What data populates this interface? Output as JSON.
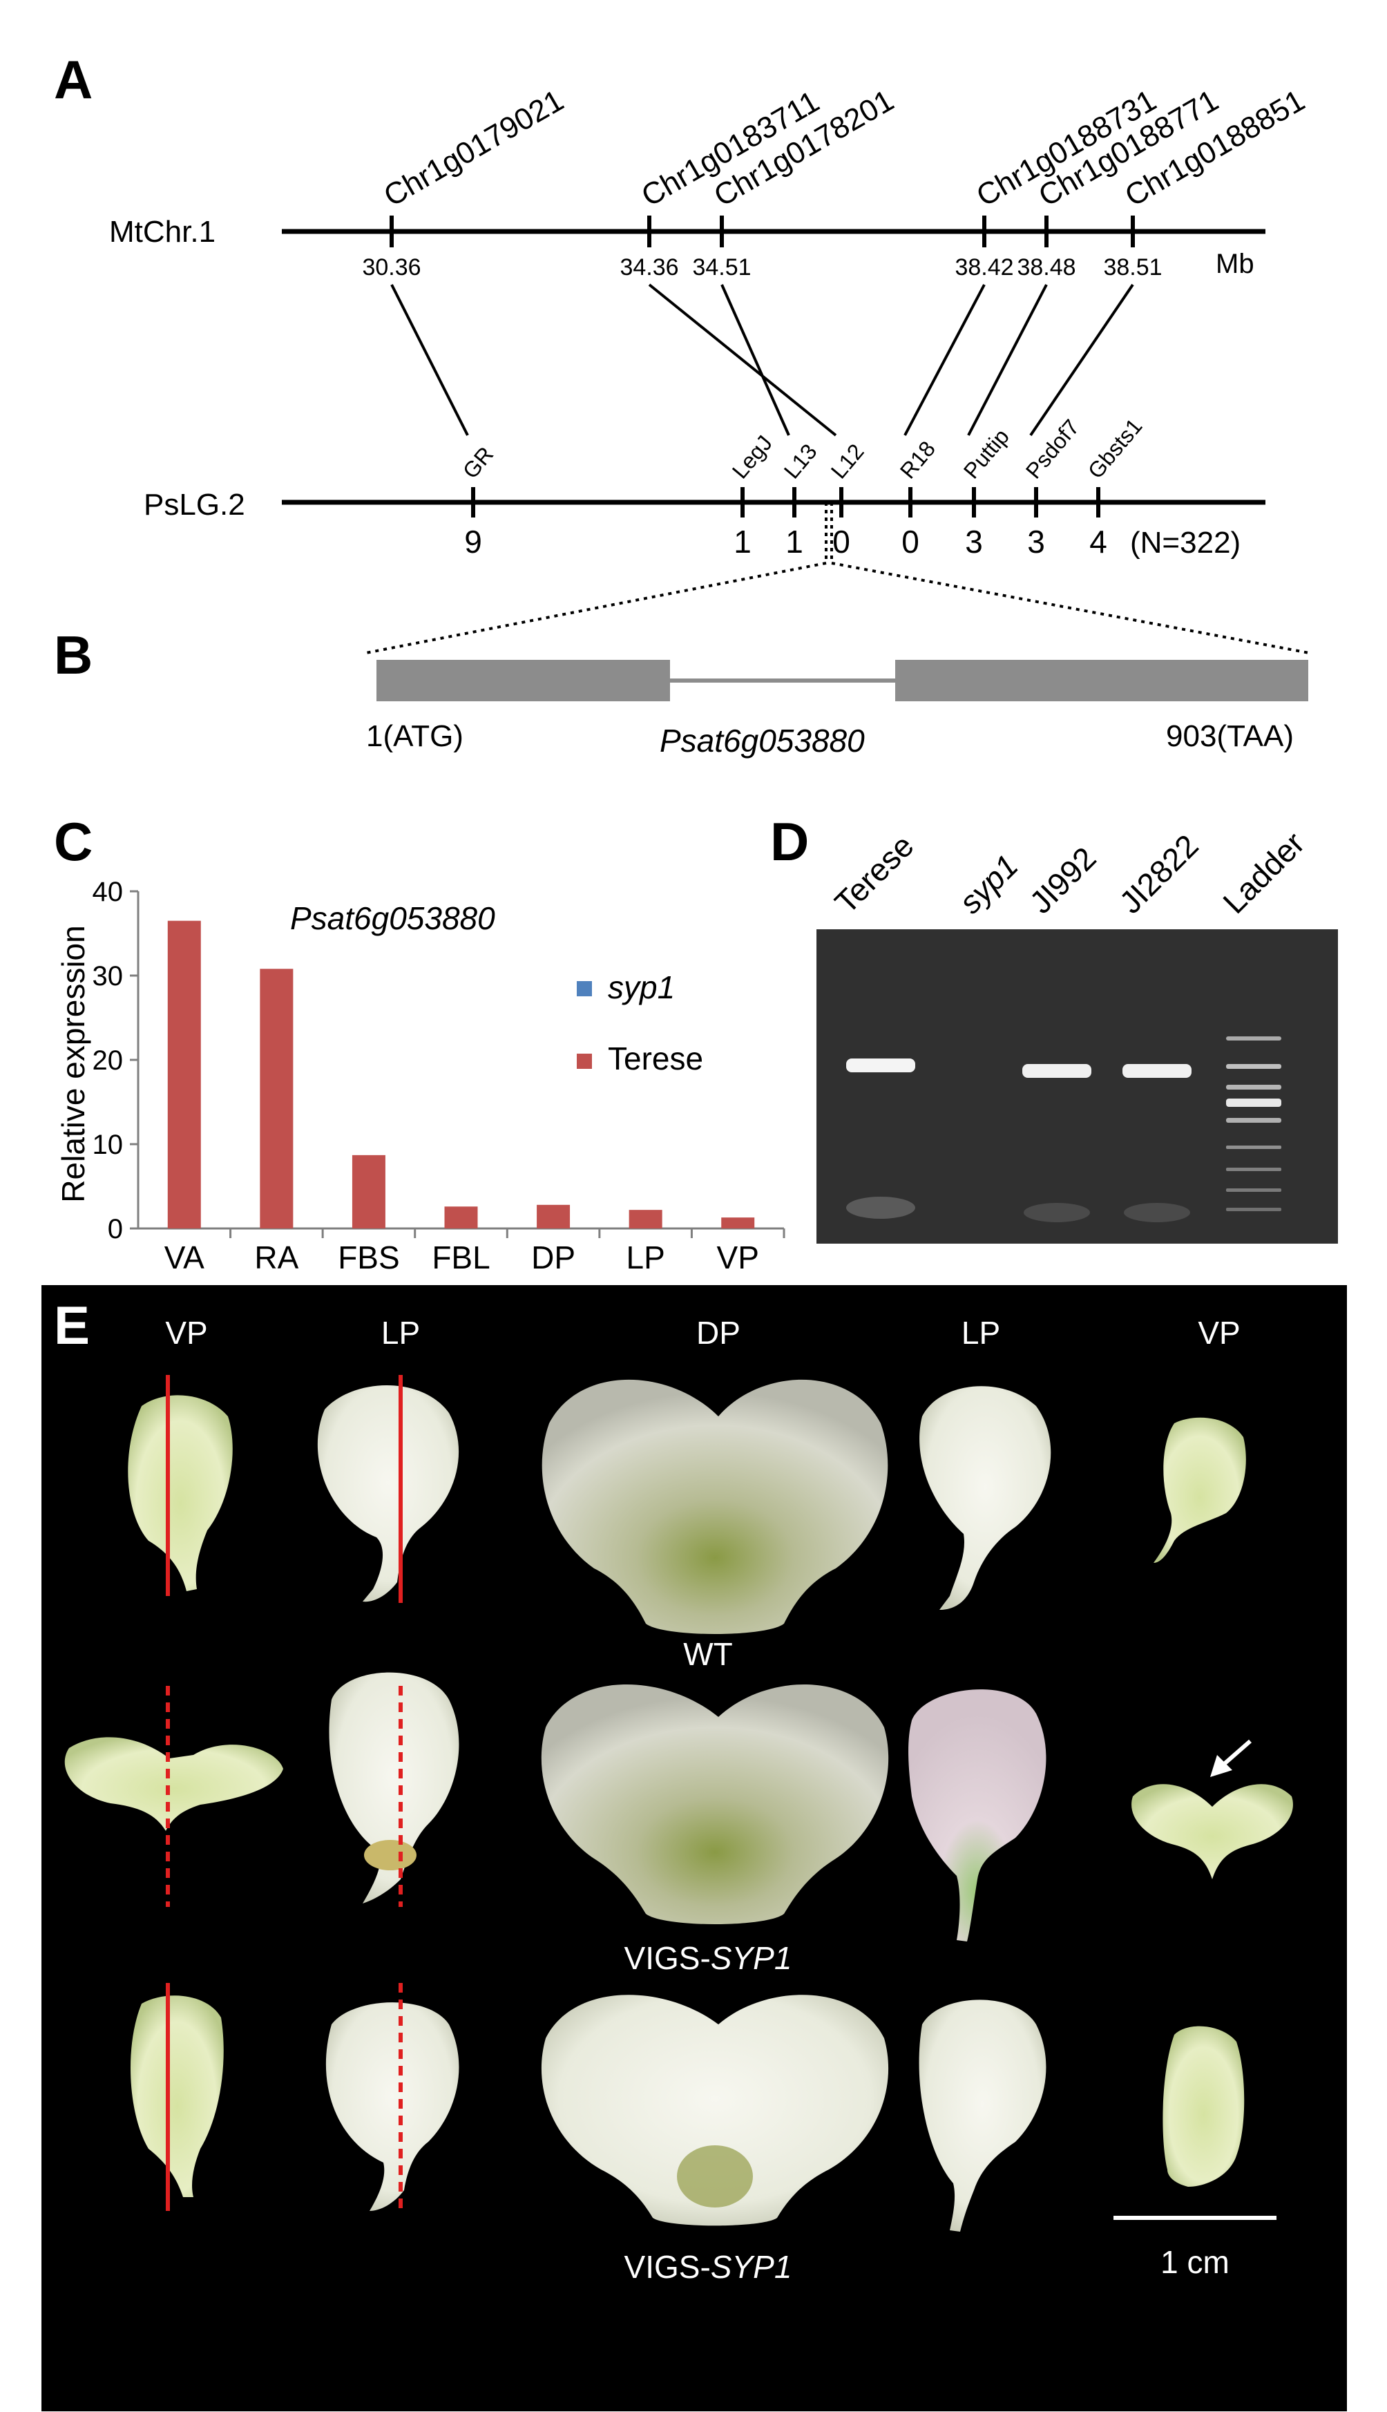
{
  "panel_a": {
    "label": "A",
    "mt_chr_label": "MtChr.1",
    "mt_unit": "Mb",
    "mt_genes": [
      {
        "name": "Chr1g0179021",
        "pos": "30.36"
      },
      {
        "name": "Chr1g0183711",
        "pos": "34.36"
      },
      {
        "name": "Chr1g0178201",
        "pos": "34.51"
      },
      {
        "name": "Chr1g0188731",
        "pos": "38.42"
      },
      {
        "name": "Chr1g0188771",
        "pos": "38.48"
      },
      {
        "name": "Chr1g0188851",
        "pos": "38.51"
      }
    ],
    "ps_lg_label": "PsLG.2",
    "ps_n": "(N=322)",
    "ps_markers": [
      {
        "name": "GR",
        "rec": "9"
      },
      {
        "name": "LegJ",
        "rec": "1"
      },
      {
        "name": "L13",
        "rec": "1"
      },
      {
        "name": "L12",
        "rec": "0"
      },
      {
        "name": "R18",
        "rec": "0"
      },
      {
        "name": "Puttip",
        "rec": "3"
      },
      {
        "name": "Psdof7",
        "rec": "3"
      },
      {
        "name": "Gbsts1",
        "rec": "4"
      }
    ]
  },
  "panel_b": {
    "label": "B",
    "start": "1(ATG)",
    "gene": "Psat6g053880",
    "end": "903(TAA)"
  },
  "panel_c": {
    "label": "C",
    "chart_data": {
      "type": "bar",
      "title": "Psat6g053880",
      "ylabel": "Relative expression",
      "xlabel": "",
      "ylim": [
        0,
        40
      ],
      "yticks": [
        "0",
        "10",
        "20",
        "30",
        "40"
      ],
      "categories": [
        "VA",
        "RA",
        "FBS",
        "FBL",
        "DP",
        "LP",
        "VP"
      ],
      "series": [
        {
          "name": "syp1",
          "color": "#4f81bd",
          "values": [
            0,
            0,
            0,
            0,
            0,
            0,
            0
          ]
        },
        {
          "name": "Terese",
          "color": "#c0504d",
          "values": [
            36.5,
            30.8,
            8.7,
            2.6,
            2.8,
            2.2,
            1.3
          ]
        }
      ],
      "legend_position": "right"
    }
  },
  "panel_d": {
    "label": "D",
    "lanes": [
      "Terese",
      "syp1",
      "JI992",
      "JI2822",
      "Ladder"
    ]
  },
  "panel_e": {
    "label": "E",
    "columns": [
      "VP",
      "LP",
      "DP",
      "LP",
      "VP"
    ],
    "row_labels": [
      {
        "prefix": "WT",
        "italic": ""
      },
      {
        "prefix": "VIGS-",
        "italic": "SYP1"
      },
      {
        "prefix": "VIGS-",
        "italic": "SYP1"
      }
    ],
    "scale": "1 cm",
    "colors": {
      "background": "#000000",
      "cut_line": "#e02020"
    }
  }
}
